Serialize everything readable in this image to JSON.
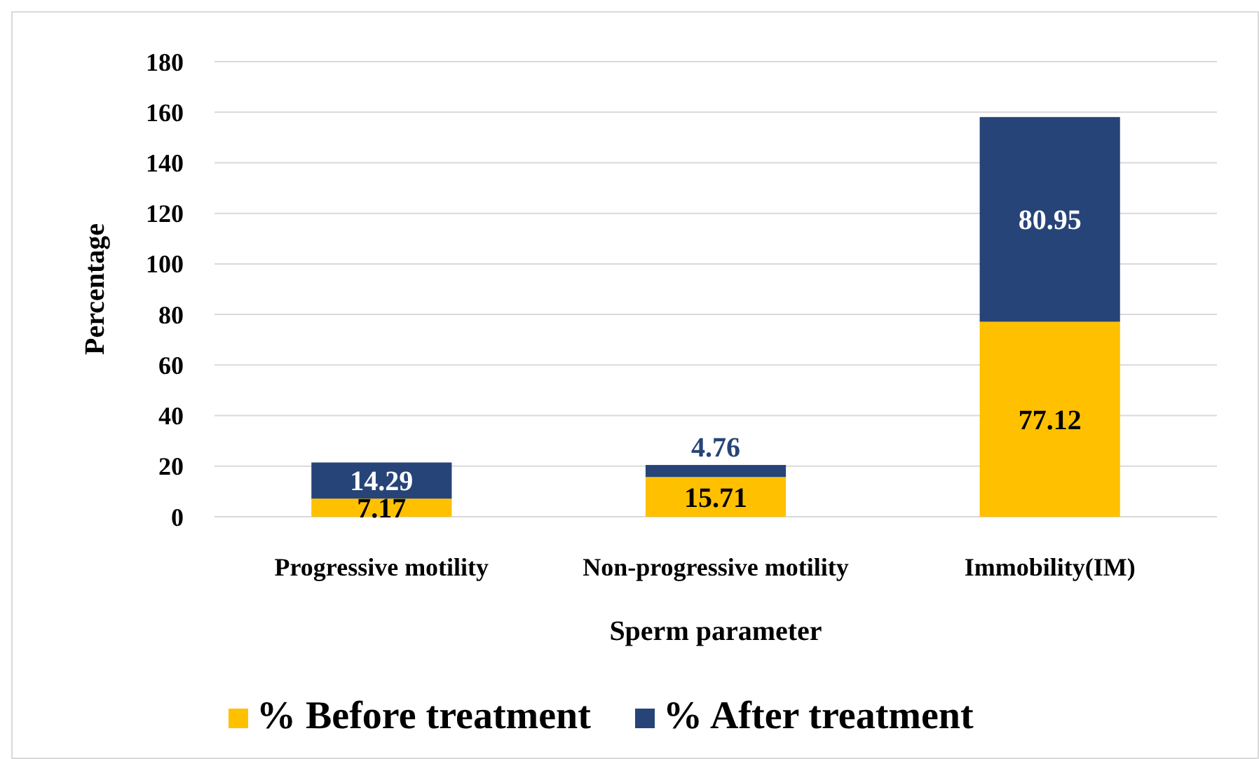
{
  "chart_data": {
    "type": "bar",
    "stacked": true,
    "xlabel": "Sperm parameter",
    "ylabel": "Percentage",
    "categories": [
      "Progressive motility",
      "Non-progressive motility",
      "Immobility(IM)"
    ],
    "series": [
      {
        "name": "% Before treatment",
        "color": "#ffc000",
        "values": [
          7.17,
          15.71,
          77.12
        ]
      },
      {
        "name": "% After treatment",
        "color": "#264478",
        "values": [
          14.29,
          4.76,
          80.95
        ]
      }
    ],
    "ylim": [
      0,
      180
    ],
    "yticks": [
      0,
      20,
      40,
      60,
      80,
      100,
      120,
      140,
      160,
      180
    ],
    "grid": "y",
    "legend": "bottom",
    "data_labels": true
  }
}
